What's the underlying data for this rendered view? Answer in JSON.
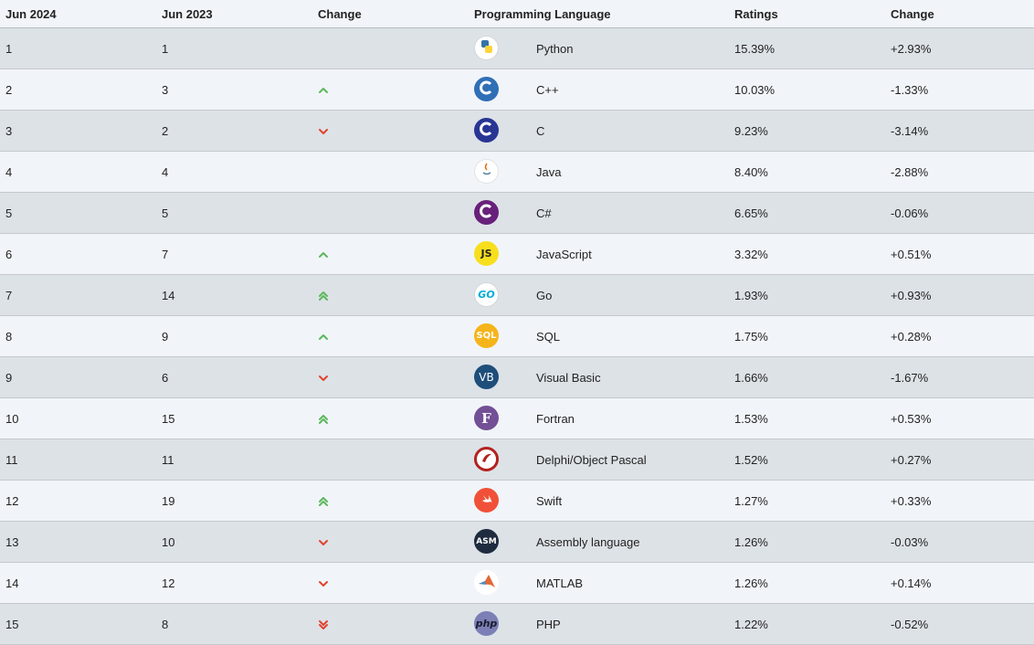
{
  "headers": [
    "Jun 2024",
    "Jun 2023",
    "Change",
    "Programming Language",
    "Ratings",
    "Change"
  ],
  "rows": [
    {
      "rank": "1",
      "prev": "1",
      "trend": "none",
      "icon": "python-icon",
      "lang": "Python",
      "rating": "15.39%",
      "change": "+2.93%"
    },
    {
      "rank": "2",
      "prev": "3",
      "trend": "up",
      "icon": "cpp-icon",
      "lang": "C++",
      "rating": "10.03%",
      "change": "-1.33%"
    },
    {
      "rank": "3",
      "prev": "2",
      "trend": "down",
      "icon": "c-icon",
      "lang": "C",
      "rating": "9.23%",
      "change": "-3.14%"
    },
    {
      "rank": "4",
      "prev": "4",
      "trend": "none",
      "icon": "java-icon",
      "lang": "Java",
      "rating": "8.40%",
      "change": "-2.88%"
    },
    {
      "rank": "5",
      "prev": "5",
      "trend": "none",
      "icon": "csharp-icon",
      "lang": "C#",
      "rating": "6.65%",
      "change": "-0.06%"
    },
    {
      "rank": "6",
      "prev": "7",
      "trend": "up",
      "icon": "javascript-icon",
      "lang": "JavaScript",
      "rating": "3.32%",
      "change": "+0.51%"
    },
    {
      "rank": "7",
      "prev": "14",
      "trend": "up2",
      "icon": "go-icon",
      "lang": "Go",
      "rating": "1.93%",
      "change": "+0.93%"
    },
    {
      "rank": "8",
      "prev": "9",
      "trend": "up",
      "icon": "sql-icon",
      "lang": "SQL",
      "rating": "1.75%",
      "change": "+0.28%"
    },
    {
      "rank": "9",
      "prev": "6",
      "trend": "down",
      "icon": "visual-basic-icon",
      "lang": "Visual Basic",
      "rating": "1.66%",
      "change": "-1.67%"
    },
    {
      "rank": "10",
      "prev": "15",
      "trend": "up2",
      "icon": "fortran-icon",
      "lang": "Fortran",
      "rating": "1.53%",
      "change": "+0.53%"
    },
    {
      "rank": "11",
      "prev": "11",
      "trend": "none",
      "icon": "delphi-icon",
      "lang": "Delphi/Object Pascal",
      "rating": "1.52%",
      "change": "+0.27%"
    },
    {
      "rank": "12",
      "prev": "19",
      "trend": "up2",
      "icon": "swift-icon",
      "lang": "Swift",
      "rating": "1.27%",
      "change": "+0.33%"
    },
    {
      "rank": "13",
      "prev": "10",
      "trend": "down",
      "icon": "assembly-icon",
      "lang": "Assembly language",
      "rating": "1.26%",
      "change": "-0.03%"
    },
    {
      "rank": "14",
      "prev": "12",
      "trend": "down",
      "icon": "matlab-icon",
      "lang": "MATLAB",
      "rating": "1.26%",
      "change": "+0.14%"
    },
    {
      "rank": "15",
      "prev": "8",
      "trend": "down2",
      "icon": "php-icon",
      "lang": "PHP",
      "rating": "1.22%",
      "change": "-0.52%"
    }
  ],
  "icon_text": {
    "javascript-icon": "JS",
    "sql-icon": "SQL",
    "visual-basic-icon": "VB",
    "fortran-icon": "F",
    "assembly-icon": "ASM",
    "php-icon": "php",
    "go-icon": "GO"
  },
  "colors": {
    "row_odd": "#dde2e7",
    "row_even": "#f1f5f9",
    "arrow_up": "#5cb85c",
    "arrow_down": "#e0442c"
  }
}
